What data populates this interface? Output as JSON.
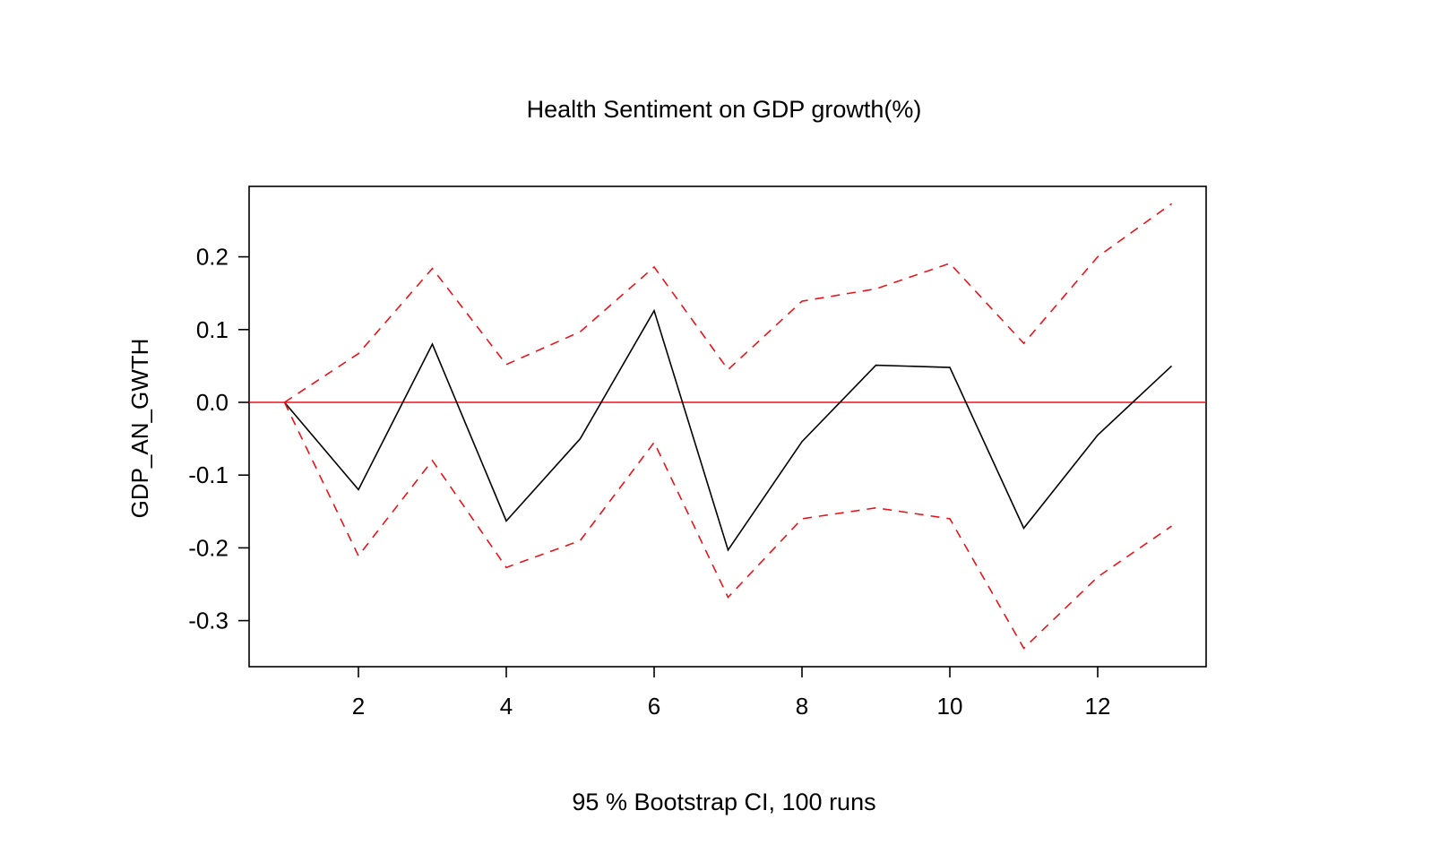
{
  "chart_data": {
    "type": "line",
    "title": "Health Sentiment on GDP growth(%)",
    "xlabel": "95 % Bootstrap CI,  100 runs",
    "ylabel": "GDP_AN_GWTH",
    "xlim": [
      0.5,
      13.5
    ],
    "ylim": [
      -0.36,
      0.3
    ],
    "x": [
      1,
      2,
      3,
      4,
      5,
      6,
      7,
      8,
      9,
      10,
      11,
      12,
      13
    ],
    "xticks": [
      2,
      4,
      6,
      8,
      10,
      12
    ],
    "xtick_labels": [
      "2",
      "4",
      "6",
      "8",
      "10",
      "12"
    ],
    "yticks": [
      -0.3,
      -0.2,
      -0.1,
      0.0,
      0.1,
      0.2
    ],
    "ytick_labels": [
      "-0.3",
      "-0.2",
      "-0.1",
      "0.0",
      "0.1",
      "0.2"
    ],
    "reference_line": {
      "y": 0.0,
      "color": "#e8141c"
    },
    "grid": false,
    "series": [
      {
        "role": "response",
        "values": [
          0.0,
          -0.12,
          0.08,
          -0.163,
          -0.05,
          0.126,
          -0.203,
          -0.054,
          0.051,
          0.048,
          -0.173,
          -0.045,
          0.05
        ],
        "color": "#000000",
        "style": "solid"
      },
      {
        "role": "upper",
        "values": [
          0.0,
          0.067,
          0.184,
          0.052,
          0.097,
          0.186,
          0.045,
          0.139,
          0.156,
          0.191,
          0.081,
          0.2,
          0.273
        ],
        "color": "#e8141c",
        "style": "dashed"
      },
      {
        "role": "lower",
        "values": [
          0.0,
          -0.211,
          -0.08,
          -0.227,
          -0.19,
          -0.055,
          -0.268,
          -0.16,
          -0.145,
          -0.16,
          -0.338,
          -0.24,
          -0.17
        ],
        "color": "#e8141c",
        "style": "dashed"
      }
    ]
  }
}
